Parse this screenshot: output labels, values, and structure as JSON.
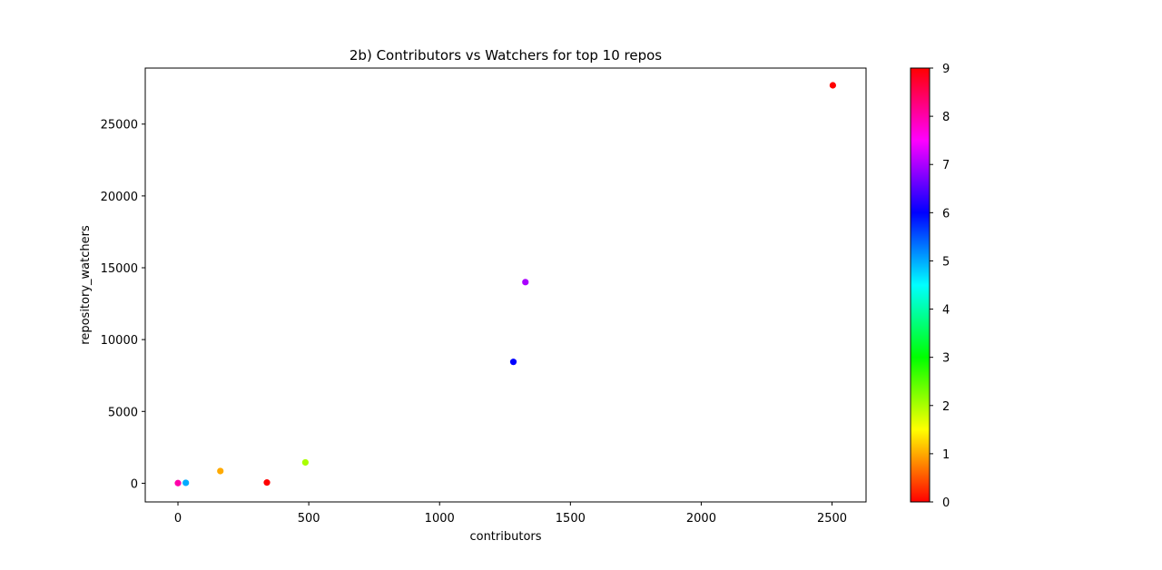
{
  "chart_data": {
    "type": "scatter",
    "title": "2b) Contributors vs Watchers for top 10 repos",
    "xlabel": "contributors",
    "ylabel": "repository_watchers",
    "xlim": [
      -125,
      2630
    ],
    "ylim": [
      -1300,
      28900
    ],
    "xticks": [
      0,
      500,
      1000,
      1500,
      2000,
      2500
    ],
    "yticks": [
      0,
      5000,
      10000,
      15000,
      20000,
      25000
    ],
    "grid": false,
    "colormap": "hsv",
    "colorbar": {
      "min": 0,
      "max": 9,
      "ticks": [
        0,
        1,
        2,
        3,
        4,
        5,
        6,
        7,
        8,
        9
      ]
    },
    "points": [
      {
        "x": 2503,
        "y": 27700,
        "c": 0
      },
      {
        "x": 340,
        "y": 50,
        "c": 0
      },
      {
        "x": 162,
        "y": 850,
        "c": 1
      },
      {
        "x": 487,
        "y": 1450,
        "c": 2
      },
      {
        "x": 30,
        "y": 30,
        "c": 5
      },
      {
        "x": 1282,
        "y": 8450,
        "c": 6
      },
      {
        "x": 1328,
        "y": 14000,
        "c": 7
      },
      {
        "x": 0,
        "y": 10,
        "c": 8
      }
    ]
  }
}
